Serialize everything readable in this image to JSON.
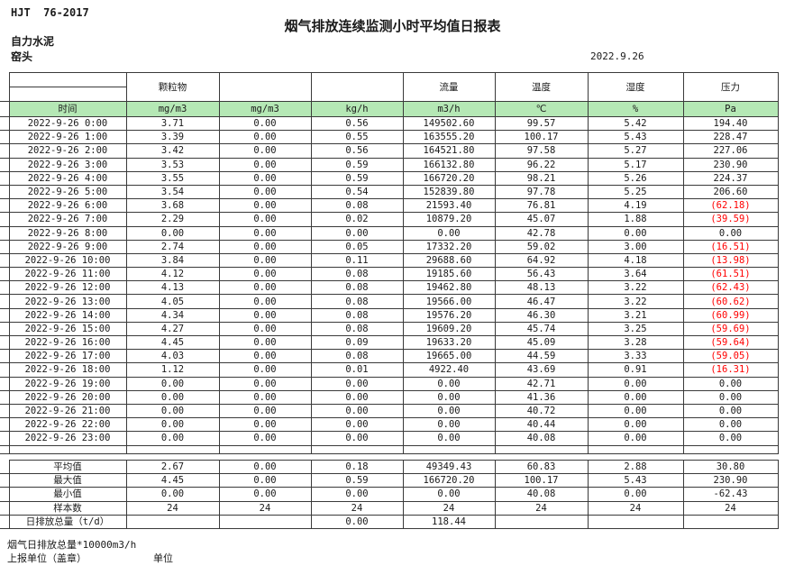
{
  "page": {
    "standard": "HJT  76-2017",
    "title": "烟气排放连续监测小时平均值日报表",
    "company": "自力水泥",
    "station": "窑头",
    "date": "2022.9.26"
  },
  "colors": {
    "header_green": "#b5e8b5",
    "alert_red": "#ff0000"
  },
  "table": {
    "time_label": "时间",
    "header_groups": [
      "颗粒物",
      "",
      "",
      "流量",
      "温度",
      "湿度",
      "压力"
    ],
    "units": [
      "mg/m3",
      "mg/m3",
      "kg/h",
      "m3/h",
      "℃",
      "%",
      "Pa"
    ],
    "rows": [
      {
        "time": "2022-9-26 0:00",
        "values": [
          "3.71",
          "0.00",
          "0.56",
          "149502.60",
          "99.57",
          "5.42",
          "194.40"
        ]
      },
      {
        "time": "2022-9-26 1:00",
        "values": [
          "3.39",
          "0.00",
          "0.55",
          "163555.20",
          "100.17",
          "5.43",
          "228.47"
        ]
      },
      {
        "time": "2022-9-26 2:00",
        "values": [
          "3.42",
          "0.00",
          "0.56",
          "164521.80",
          "97.58",
          "5.27",
          "227.06"
        ]
      },
      {
        "time": "2022-9-26 3:00",
        "values": [
          "3.53",
          "0.00",
          "0.59",
          "166132.80",
          "96.22",
          "5.17",
          "230.90"
        ]
      },
      {
        "time": "2022-9-26 4:00",
        "values": [
          "3.55",
          "0.00",
          "0.59",
          "166720.20",
          "98.21",
          "5.26",
          "224.37"
        ]
      },
      {
        "time": "2022-9-26 5:00",
        "values": [
          "3.54",
          "0.00",
          "0.54",
          "152839.80",
          "97.78",
          "5.25",
          "206.60"
        ]
      },
      {
        "time": "2022-9-26 6:00",
        "values": [
          "3.68",
          "0.00",
          "0.08",
          "21593.40",
          "76.81",
          "4.19",
          "(62.18)"
        ]
      },
      {
        "time": "2022-9-26 7:00",
        "values": [
          "2.29",
          "0.00",
          "0.02",
          "10879.20",
          "45.07",
          "1.88",
          "(39.59)"
        ]
      },
      {
        "time": "2022-9-26 8:00",
        "values": [
          "0.00",
          "0.00",
          "0.00",
          "0.00",
          "42.78",
          "0.00",
          "0.00"
        ]
      },
      {
        "time": "2022-9-26 9:00",
        "values": [
          "2.74",
          "0.00",
          "0.05",
          "17332.20",
          "59.02",
          "3.00",
          "(16.51)"
        ]
      },
      {
        "time": "2022-9-26 10:00",
        "values": [
          "3.84",
          "0.00",
          "0.11",
          "29688.60",
          "64.92",
          "4.18",
          "(13.98)"
        ]
      },
      {
        "time": "2022-9-26 11:00",
        "values": [
          "4.12",
          "0.00",
          "0.08",
          "19185.60",
          "56.43",
          "3.64",
          "(61.51)"
        ]
      },
      {
        "time": "2022-9-26 12:00",
        "values": [
          "4.13",
          "0.00",
          "0.08",
          "19462.80",
          "48.13",
          "3.22",
          "(62.43)"
        ]
      },
      {
        "time": "2022-9-26 13:00",
        "values": [
          "4.05",
          "0.00",
          "0.08",
          "19566.00",
          "46.47",
          "3.22",
          "(60.62)"
        ]
      },
      {
        "time": "2022-9-26 14:00",
        "values": [
          "4.34",
          "0.00",
          "0.08",
          "19576.20",
          "46.30",
          "3.21",
          "(60.99)"
        ]
      },
      {
        "time": "2022-9-26 15:00",
        "values": [
          "4.27",
          "0.00",
          "0.08",
          "19609.20",
          "45.74",
          "3.25",
          "(59.69)"
        ]
      },
      {
        "time": "2022-9-26 16:00",
        "values": [
          "4.45",
          "0.00",
          "0.09",
          "19633.20",
          "45.09",
          "3.28",
          "(59.64)"
        ]
      },
      {
        "time": "2022-9-26 17:00",
        "values": [
          "4.03",
          "0.00",
          "0.08",
          "19665.00",
          "44.59",
          "3.33",
          "(59.05)"
        ]
      },
      {
        "time": "2022-9-26 18:00",
        "values": [
          "1.12",
          "0.00",
          "0.01",
          "4922.40",
          "43.69",
          "0.91",
          "(16.31)"
        ]
      },
      {
        "time": "2022-9-26 19:00",
        "values": [
          "0.00",
          "0.00",
          "0.00",
          "0.00",
          "42.71",
          "0.00",
          "0.00"
        ]
      },
      {
        "time": "2022-9-26 20:00",
        "values": [
          "0.00",
          "0.00",
          "0.00",
          "0.00",
          "41.36",
          "0.00",
          "0.00"
        ]
      },
      {
        "time": "2022-9-26 21:00",
        "values": [
          "0.00",
          "0.00",
          "0.00",
          "0.00",
          "40.72",
          "0.00",
          "0.00"
        ]
      },
      {
        "time": "2022-9-26 22:00",
        "values": [
          "0.00",
          "0.00",
          "0.00",
          "0.00",
          "40.44",
          "0.00",
          "0.00"
        ]
      },
      {
        "time": "2022-9-26 23:00",
        "values": [
          "0.00",
          "0.00",
          "0.00",
          "0.00",
          "40.08",
          "0.00",
          "0.00"
        ]
      }
    ],
    "summary": [
      {
        "label": "平均值",
        "values": [
          "2.67",
          "0.00",
          "0.18",
          "49349.43",
          "60.83",
          "2.88",
          "30.80"
        ]
      },
      {
        "label": "最大值",
        "values": [
          "4.45",
          "0.00",
          "0.59",
          "166720.20",
          "100.17",
          "5.43",
          "230.90"
        ]
      },
      {
        "label": "最小值",
        "values": [
          "0.00",
          "0.00",
          "0.00",
          "0.00",
          "40.08",
          "0.00",
          "-62.43"
        ]
      },
      {
        "label": "样本数",
        "values": [
          "24",
          "24",
          "24",
          "24",
          "24",
          "24",
          "24"
        ]
      },
      {
        "label": "日排放总量（t/d）",
        "values": [
          "",
          "",
          "0.00",
          "118.44",
          "",
          "",
          ""
        ]
      }
    ]
  },
  "footer": {
    "note": "烟气日排放总量*10000m3/h",
    "report_org": "上报单位（盖章）",
    "org_unit": "单位"
  }
}
